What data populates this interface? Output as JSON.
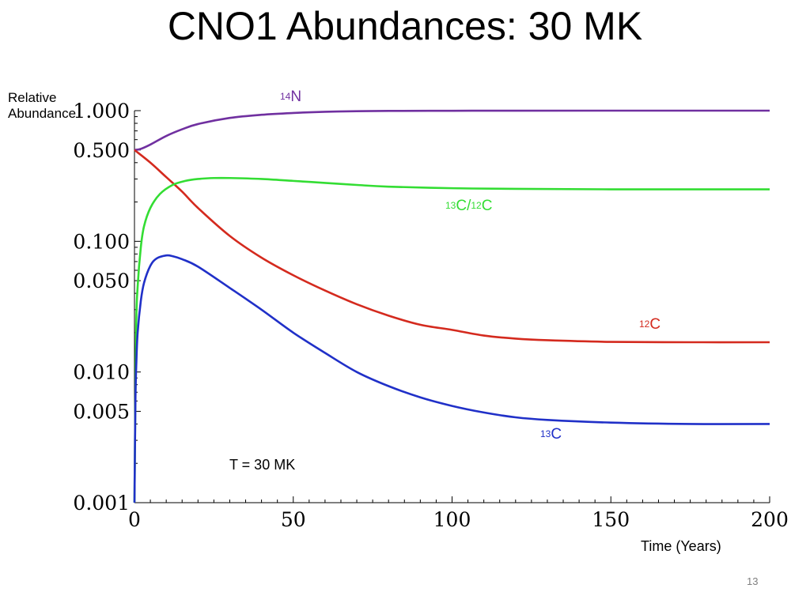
{
  "title": "CNO1 Abundances: 30 MK",
  "slide_number": "13",
  "chart_data": {
    "type": "line",
    "title": "CNO1 Abundances: 30 MK",
    "xlabel": "Time (Years)",
    "ylabel_lines": [
      "Relative",
      "Abundance"
    ],
    "yscale": "log",
    "xlim": [
      0,
      200
    ],
    "ylim": [
      0.001,
      1.0
    ],
    "x_ticks": [
      "0",
      "50",
      "100",
      "150",
      "200"
    ],
    "y_ticks": [
      "1.000",
      "0.500",
      "0.100",
      "0.050",
      "0.010",
      "0.005",
      "0.001"
    ],
    "annotation": "T = 30 MK",
    "series": [
      {
        "iso": "14",
        "sym": "N",
        "color": "#7030a0",
        "x": [
          0,
          2,
          5,
          10,
          15,
          20,
          30,
          40,
          50,
          60,
          70,
          80,
          100,
          120,
          150,
          200
        ],
        "y": [
          0.5,
          0.51,
          0.55,
          0.64,
          0.72,
          0.79,
          0.88,
          0.93,
          0.96,
          0.98,
          0.99,
          0.995,
          0.998,
          0.999,
          1.0,
          1.0
        ]
      },
      {
        "iso": "12",
        "sym": "C",
        "color": "#d42a1e",
        "x": [
          0,
          5,
          10,
          15,
          20,
          30,
          40,
          50,
          60,
          70,
          80,
          90,
          100,
          110,
          120,
          130,
          150,
          175,
          200
        ],
        "y": [
          0.5,
          0.4,
          0.31,
          0.24,
          0.18,
          0.11,
          0.075,
          0.055,
          0.042,
          0.033,
          0.027,
          0.023,
          0.021,
          0.019,
          0.018,
          0.0175,
          0.017,
          0.0169,
          0.0169
        ]
      },
      {
        "iso": "13",
        "sym": "C",
        "ratio": "12",
        "color": "#33dd33",
        "x": [
          0,
          0.5,
          1,
          2,
          3,
          5,
          8,
          12,
          16,
          20,
          25,
          30,
          40,
          50,
          60,
          70,
          80,
          100,
          120,
          150,
          200
        ],
        "y": [
          0.001,
          0.02,
          0.045,
          0.09,
          0.13,
          0.18,
          0.23,
          0.27,
          0.29,
          0.3,
          0.305,
          0.305,
          0.3,
          0.29,
          0.28,
          0.27,
          0.262,
          0.255,
          0.252,
          0.25,
          0.25
        ]
      },
      {
        "iso": "13",
        "sym": "C",
        "color": "#2030c8",
        "x": [
          0,
          0.3,
          0.6,
          1,
          2,
          3,
          5,
          7,
          10,
          12,
          15,
          20,
          30,
          40,
          50,
          60,
          70,
          80,
          90,
          100,
          110,
          120,
          130,
          150,
          175,
          200
        ],
        "y": [
          0.001,
          0.006,
          0.012,
          0.02,
          0.035,
          0.048,
          0.065,
          0.074,
          0.078,
          0.077,
          0.073,
          0.064,
          0.044,
          0.03,
          0.02,
          0.014,
          0.01,
          0.0078,
          0.0064,
          0.0055,
          0.0049,
          0.0045,
          0.0043,
          0.0041,
          0.004,
          0.004
        ]
      }
    ]
  }
}
